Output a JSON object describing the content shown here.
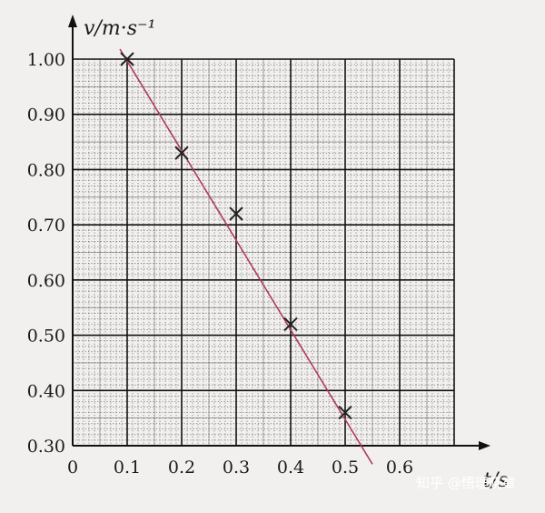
{
  "chart_data": {
    "type": "scatter",
    "title": "",
    "xlabel": "t/s",
    "ylabel": "v/m·s⁻¹",
    "xlim": [
      0,
      0.7
    ],
    "ylim": [
      0.3,
      1.0
    ],
    "x_tick_labels": [
      "0",
      "0.1",
      "0.2",
      "0.3",
      "0.4",
      "0.5",
      "0.6"
    ],
    "y_tick_labels": [
      "0.30",
      "0.40",
      "0.50",
      "0.60",
      "0.70",
      "0.80",
      "0.90",
      "1.00"
    ],
    "grid": true,
    "points": [
      {
        "x": 0.1,
        "y": 1.0
      },
      {
        "x": 0.2,
        "y": 0.83
      },
      {
        "x": 0.3,
        "y": 0.72
      },
      {
        "x": 0.4,
        "y": 0.52
      },
      {
        "x": 0.5,
        "y": 0.36
      }
    ],
    "fit_line": {
      "x_start": 0.1,
      "x_end": 0.55,
      "slope": -1.63,
      "intercept": 1.163
    },
    "colors": {
      "fit_line": "#b03a5b",
      "points": "#222222",
      "grid": "#333333"
    }
  },
  "watermark": "知乎 @悟理晓章"
}
